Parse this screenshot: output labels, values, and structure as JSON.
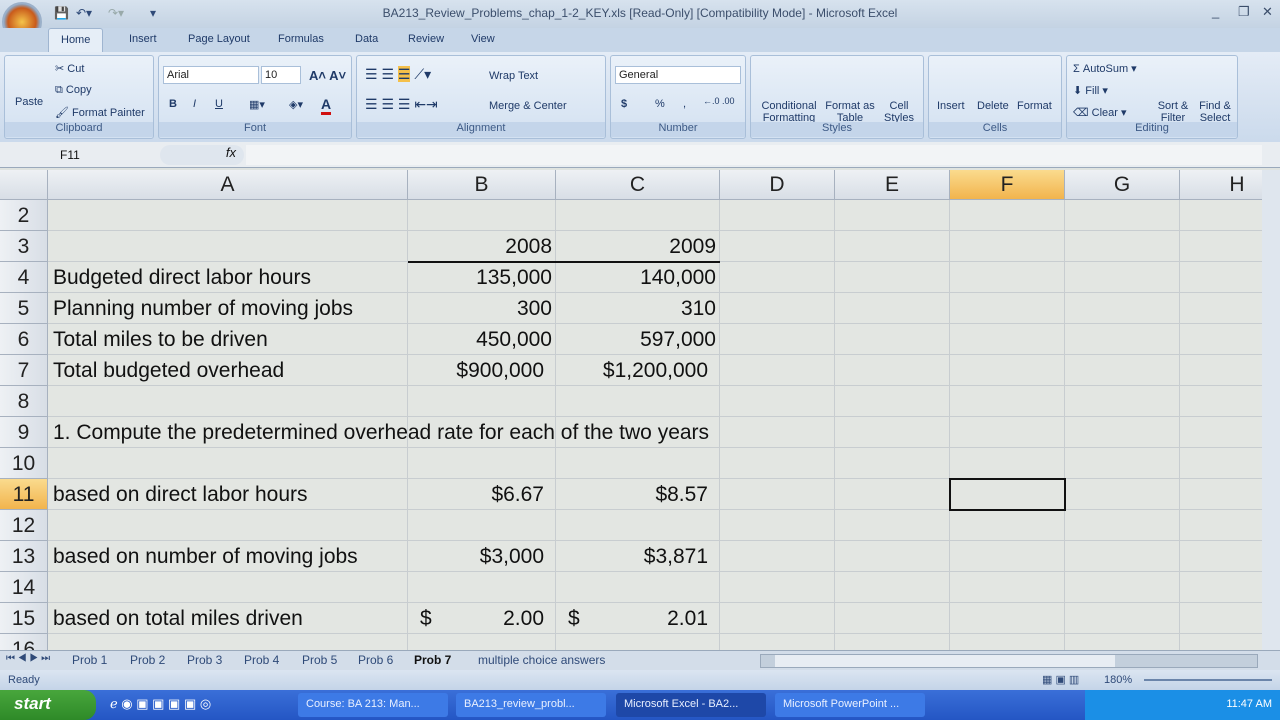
{
  "window": {
    "title": "BA213_Review_Problems_chap_1-2_KEY.xls  [Read-Only]  [Compatibility Mode] - Microsoft Excel"
  },
  "ribbon_tabs": [
    "Home",
    "Insert",
    "Page Layout",
    "Formulas",
    "Data",
    "Review",
    "View"
  ],
  "clipboard": {
    "paste": "Paste",
    "cut": "Cut",
    "copy": "Copy",
    "format_painter": "Format Painter",
    "label": "Clipboard"
  },
  "font": {
    "name": "Arial",
    "size": "10",
    "bold": "B",
    "italic": "I",
    "underline": "U",
    "label": "Font"
  },
  "alignment": {
    "wrap": "Wrap Text",
    "merge": "Merge & Center",
    "label": "Alignment"
  },
  "number": {
    "format": "General",
    "currency": "$",
    "percent": "%",
    "comma": ",",
    "label": "Number"
  },
  "styles": {
    "conditional": "Conditional Formatting",
    "table": "Format as Table",
    "cell": "Cell Styles",
    "label": "Styles"
  },
  "cells": {
    "insert": "Insert",
    "delete": "Delete",
    "format": "Format",
    "label": "Cells"
  },
  "editing": {
    "autosum": "AutoSum",
    "fill": "Fill",
    "clear": "Clear",
    "sort": "Sort & Filter",
    "find": "Find & Select",
    "label": "Editing"
  },
  "formula_bar": {
    "name_box": "F11",
    "fx": "fx",
    "value": ""
  },
  "columns": [
    "A",
    "B",
    "C",
    "D",
    "E",
    "F",
    "G",
    "H"
  ],
  "selected_cell": {
    "col": "F",
    "row": 11
  },
  "rows": [
    {
      "n": "2",
      "a": "",
      "b": "",
      "c": ""
    },
    {
      "n": "3",
      "a": "",
      "b": "2008",
      "c": "2009"
    },
    {
      "n": "4",
      "a": "Budgeted direct labor hours",
      "b": "135,000",
      "c": "140,000"
    },
    {
      "n": "5",
      "a": "Planning number of moving jobs",
      "b": "300",
      "c": "310"
    },
    {
      "n": "6",
      "a": "Total miles to be driven",
      "b": "450,000",
      "c": "597,000"
    },
    {
      "n": "7",
      "a": "Total budgeted overhead",
      "b": "$900,000",
      "c": "$1,200,000"
    },
    {
      "n": "8",
      "a": "",
      "b": "",
      "c": ""
    },
    {
      "n": "9",
      "a": "1. Compute the predetermined overhead rate for each of the two years",
      "b": "",
      "c": ""
    },
    {
      "n": "10",
      "a": "",
      "b": "",
      "c": ""
    },
    {
      "n": "11",
      "a": "based on direct labor hours",
      "b": "$6.67",
      "c": "$8.57"
    },
    {
      "n": "12",
      "a": "",
      "b": "",
      "c": ""
    },
    {
      "n": "13",
      "a": "based on number of moving jobs",
      "b": "$3,000",
      "c": "$3,871"
    },
    {
      "n": "14",
      "a": "",
      "b": "",
      "c": ""
    },
    {
      "n": "15",
      "a": "based on total miles driven",
      "b": "2.00",
      "c": "2.01",
      "b_sym": "$",
      "c_sym": "$"
    },
    {
      "n": "16",
      "a": "",
      "b": "",
      "c": ""
    }
  ],
  "sheet_tabs": [
    "Prob 1",
    "Prob 2",
    "Prob 3",
    "Prob 4",
    "Prob 5",
    "Prob 6",
    "Prob 7",
    "multiple choice answers"
  ],
  "active_sheet": "Prob 7",
  "status": {
    "text": "Ready",
    "zoom": "180%"
  },
  "taskbar": {
    "start": "start",
    "tasks": [
      "Course: BA 213: Man...",
      "BA213_review_probl...",
      "Microsoft Excel - BA2...",
      "Microsoft PowerPoint ..."
    ],
    "active_task": 2,
    "clock": "11:47 AM"
  }
}
